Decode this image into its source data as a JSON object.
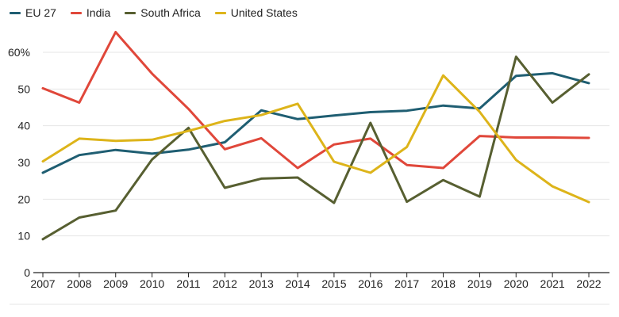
{
  "chart_data": {
    "type": "line",
    "title": "",
    "xlabel": "",
    "ylabel": "",
    "x": [
      "2007",
      "2008",
      "2009",
      "2010",
      "2011",
      "2012",
      "2013",
      "2014",
      "2015",
      "2016",
      "2017",
      "2018",
      "2019",
      "2020",
      "2021",
      "2022"
    ],
    "ylim": [
      0,
      60
    ],
    "y_ticks": [
      "0",
      "10",
      "20",
      "30",
      "40",
      "50",
      "60%"
    ],
    "y_tick_values": [
      0,
      10,
      20,
      30,
      40,
      50,
      60
    ],
    "grid": true,
    "legend_position": "top-left",
    "series": [
      {
        "name": "EU 27",
        "color": "#1f5e72",
        "values": [
          27.2,
          32.0,
          33.4,
          32.4,
          33.5,
          35.5,
          44.2,
          41.8,
          42.8,
          43.7,
          44.1,
          45.5,
          44.7,
          53.6,
          54.3,
          51.6
        ]
      },
      {
        "name": "India",
        "color": "#e0473a",
        "values": [
          50.2,
          46.3,
          65.5,
          54.2,
          44.6,
          33.6,
          36.6,
          28.5,
          34.9,
          36.5,
          29.3,
          28.5,
          37.2,
          36.8,
          36.8,
          36.7
        ]
      },
      {
        "name": "South Africa",
        "color": "#575f31",
        "values": [
          9.1,
          15.0,
          16.9,
          30.8,
          39.4,
          23.1,
          25.6,
          25.9,
          19.0,
          40.8,
          19.3,
          25.2,
          20.7,
          58.8,
          46.3,
          54.0
        ]
      },
      {
        "name": "United States",
        "color": "#ddb41a",
        "values": [
          30.3,
          36.5,
          35.9,
          36.2,
          38.6,
          41.3,
          42.9,
          46.0,
          30.2,
          27.2,
          34.2,
          53.7,
          43.8,
          30.7,
          23.5,
          19.2
        ]
      }
    ]
  }
}
